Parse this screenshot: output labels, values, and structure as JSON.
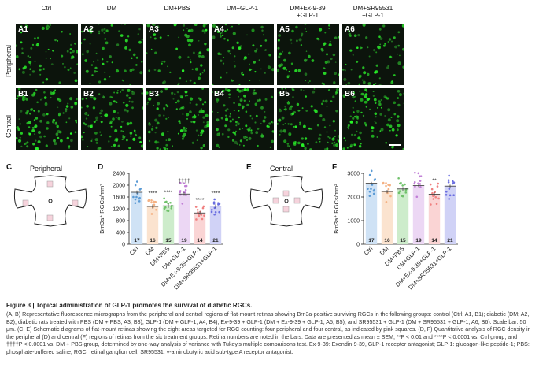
{
  "columns": [
    "Ctrl",
    "DM",
    "DM+PBS",
    "DM+GLP-1",
    "DM+Ex-9-39\n+GLP-1",
    "DM+SR95531\n+GLP-1"
  ],
  "row_labels": [
    "Peripheral",
    "Central"
  ],
  "panel_a_labels": [
    "A1",
    "A2",
    "A3",
    "A4",
    "A5",
    "A6"
  ],
  "panel_b_labels": [
    "B1",
    "B2",
    "B3",
    "B4",
    "B5",
    "B6"
  ],
  "panel_letters": {
    "C": "C",
    "D": "D",
    "E": "E",
    "F": "F"
  },
  "schematic": {
    "peripheral_title": "Peripheral",
    "central_title": "Central"
  },
  "chart_data": [
    {
      "type": "bar",
      "panel": "D",
      "ylabel": "Brn3a⁺ RGCs/mm²",
      "ylim": [
        0,
        2400
      ],
      "yticks": [
        0,
        400,
        800,
        1200,
        1600,
        2000,
        2400
      ],
      "categories": [
        "Ctrl",
        "DM",
        "DM+PBS",
        "DM+GLP-1",
        "DM+Ex-9-39+GLP-1",
        "DM+SR95531+GLP-1"
      ],
      "values": [
        1760,
        1280,
        1300,
        1700,
        1060,
        1290
      ],
      "sem": [
        60,
        70,
        70,
        60,
        60,
        60
      ],
      "n": [
        "17",
        "16",
        "15",
        "19",
        "14",
        "21"
      ],
      "significance": [
        "",
        "****",
        "****",
        "††††",
        "****",
        "****"
      ],
      "colors": [
        "#5b9bd5",
        "#f4b183",
        "#70c16b",
        "#c17fd6",
        "#f08080",
        "#6a6ee0"
      ],
      "fills": [
        "#cfe2f5",
        "#fbe3cf",
        "#cdeccb",
        "#ecd7f4",
        "#fad4d4",
        "#d0d2f6"
      ]
    },
    {
      "type": "bar",
      "panel": "F",
      "ylabel": "Brn3a⁺ RGCs/mm²",
      "ylim": [
        0,
        3000
      ],
      "yticks": [
        0,
        1000,
        2000,
        3000
      ],
      "categories": [
        "Ctrl",
        "DM",
        "DM+PBS",
        "DM+GLP-1",
        "DM+Ex-9-39+GLP-1",
        "DM+SR95531+GLP-1"
      ],
      "values": [
        2580,
        2230,
        2340,
        2480,
        2120,
        2460
      ],
      "sem": [
        60,
        70,
        80,
        60,
        90,
        60
      ],
      "n": [
        "17",
        "16",
        "15",
        "19",
        "14",
        "21"
      ],
      "significance": [
        "",
        "",
        "",
        "",
        "**",
        ""
      ],
      "colors": [
        "#5b9bd5",
        "#f4b183",
        "#70c16b",
        "#c17fd6",
        "#f08080",
        "#6a6ee0"
      ],
      "fills": [
        "#cfe2f5",
        "#fbe3cf",
        "#cdeccb",
        "#ecd7f4",
        "#fad4d4",
        "#d0d2f6"
      ]
    }
  ],
  "caption_title": "Figure 3  |  Topical administration of GLP-1 promotes the survival of diabetic RGCs.",
  "caption_body": "(A, B) Representative fluorescence micrographs from the peripheral and central regions of flat-mount retinas showing Brn3a-positive surviving RGCs in the following groups: control (Ctrl; A1, B1); diabetic (DM; A2, B2); diabetic rats treated with PBS (DM + PBS; A3, B3), GLP-1 (DM + GLP-1; A4, B4), Ex-9-39 + GLP-1 (DM + Ex-9-39 + GLP-1; A5, B5), and SR95531 + GLP-1 (DM + SR95531 + GLP-1; A6, B6). Scale bar: 50 μm. (C, E) Schematic diagrams of flat-mount retinas showing the eight areas targeted for RGC counting: four peripheral and four central, as indicated by pink squares. (D, F) Quantitative analysis of RGC density in the peripheral (D) and central (F) regions of retinas from the six treatment groups. Retina numbers are noted in the bars. Data are presented as mean ± SEM; **P < 0.01 and ****P < 0.0001 vs. Ctrl group, and ††††P < 0.0001 vs. DM + PBS group, determined by one-way analysis of variance with Tukey's multiple comparisons test. Ex-9-39: Exendin-9-39, GLP-1 receptor antagonist; GLP-1: glucagon-like peptide-1; PBS: phosphate-buffered saline; RGC: retinal ganglion cell; SR95531: γ-aminobutyric acid sub-type A receptor antagonist."
}
